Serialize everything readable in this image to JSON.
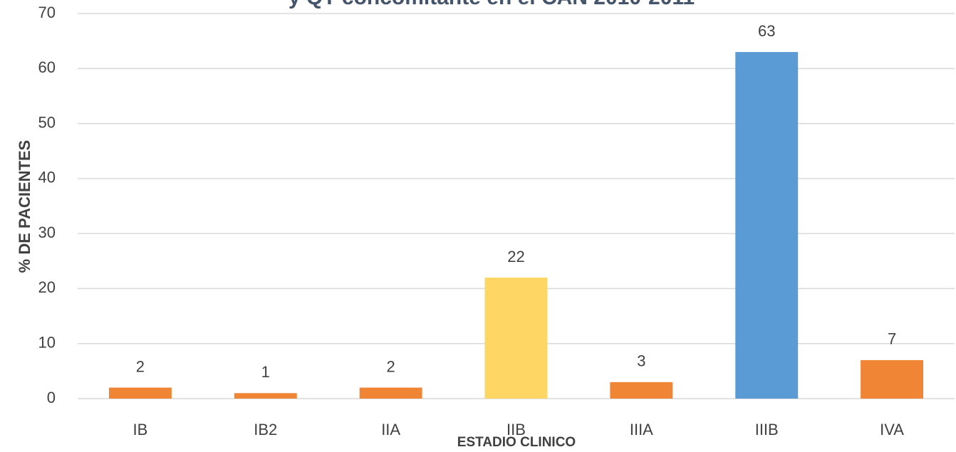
{
  "chart_data": {
    "type": "bar",
    "title": "y QT concomitante en el CAN 2010-2011",
    "x_label": "ESTADIO CLINICO",
    "y_label": "% DE PACIENTES",
    "categories": [
      "IB",
      "IB2",
      "IIA",
      "IIB",
      "IIIA",
      "IIIB",
      "IVA"
    ],
    "values": [
      2,
      1,
      2,
      22,
      3,
      63,
      7
    ],
    "colors": [
      "#ef8535",
      "#ef8535",
      "#ef8535",
      "#fdd663",
      "#ef8535",
      "#5b9bd5",
      "#ef8535"
    ],
    "ylim": [
      0,
      70
    ],
    "yticks": [
      0,
      10,
      20,
      30,
      40,
      50,
      60,
      70
    ],
    "grid": true
  }
}
